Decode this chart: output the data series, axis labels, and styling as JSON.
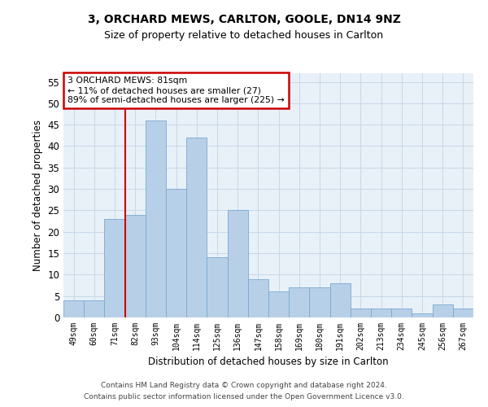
{
  "title1": "3, ORCHARD MEWS, CARLTON, GOOLE, DN14 9NZ",
  "title2": "Size of property relative to detached houses in Carlton",
  "xlabel": "Distribution of detached houses by size in Carlton",
  "ylabel": "Number of detached properties",
  "categories": [
    "49sqm",
    "60sqm",
    "71sqm",
    "82sqm",
    "93sqm",
    "104sqm",
    "114sqm",
    "125sqm",
    "136sqm",
    "147sqm",
    "158sqm",
    "169sqm",
    "180sqm",
    "191sqm",
    "202sqm",
    "213sqm",
    "234sqm",
    "245sqm",
    "256sqm",
    "267sqm"
  ],
  "values": [
    4,
    4,
    23,
    24,
    46,
    30,
    42,
    14,
    25,
    9,
    6,
    7,
    7,
    8,
    2,
    2,
    2,
    1,
    3,
    2
  ],
  "bar_color": "#b8cfe8",
  "bar_edge_color": "#7aaad0",
  "vline_x": 2.5,
  "vline_color": "#cc0000",
  "annotation_text": "3 ORCHARD MEWS: 81sqm\n← 11% of detached houses are smaller (27)\n89% of semi-detached houses are larger (225) →",
  "annotation_box_color": "#ffffff",
  "annotation_box_edge": "#cc0000",
  "ylim": [
    0,
    57
  ],
  "yticks": [
    0,
    5,
    10,
    15,
    20,
    25,
    30,
    35,
    40,
    45,
    50,
    55
  ],
  "footer1": "Contains HM Land Registry data © Crown copyright and database right 2024.",
  "footer2": "Contains public sector information licensed under the Open Government Licence v3.0.",
  "grid_color": "#c8d8e8",
  "bg_color": "#e8f0f8",
  "title1_fontsize": 10,
  "title2_fontsize": 9
}
